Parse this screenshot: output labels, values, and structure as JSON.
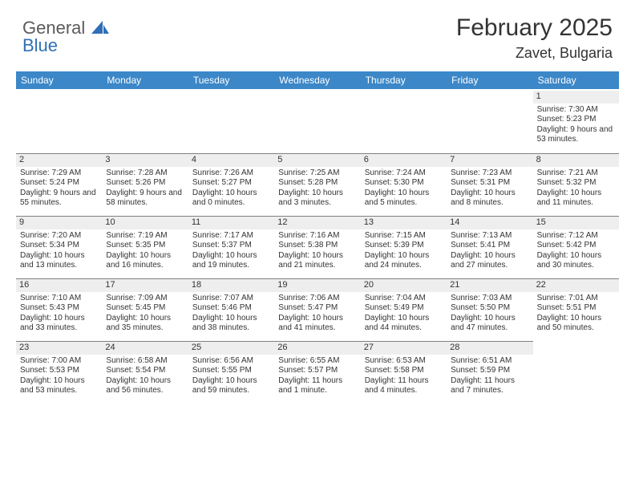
{
  "logo": {
    "word1": "General",
    "word2": "Blue"
  },
  "title": "February 2025",
  "location": "Zavet, Bulgaria",
  "colors": {
    "header_bg": "#3b87c8",
    "header_text": "#ffffff",
    "date_row_bg": "#eeeeee",
    "date_row_border": "#808080",
    "body_text": "#333333",
    "logo_gray": "#5b5b5b",
    "logo_blue": "#2f6fb5"
  },
  "daynames": [
    "Sunday",
    "Monday",
    "Tuesday",
    "Wednesday",
    "Thursday",
    "Friday",
    "Saturday"
  ],
  "weeks": [
    [
      {
        "n": null
      },
      {
        "n": null
      },
      {
        "n": null
      },
      {
        "n": null
      },
      {
        "n": null
      },
      {
        "n": null
      },
      {
        "n": 1,
        "sunrise": "7:30 AM",
        "sunset": "5:23 PM",
        "daylight": "9 hours and 53 minutes."
      }
    ],
    [
      {
        "n": 2,
        "sunrise": "7:29 AM",
        "sunset": "5:24 PM",
        "daylight": "9 hours and 55 minutes."
      },
      {
        "n": 3,
        "sunrise": "7:28 AM",
        "sunset": "5:26 PM",
        "daylight": "9 hours and 58 minutes."
      },
      {
        "n": 4,
        "sunrise": "7:26 AM",
        "sunset": "5:27 PM",
        "daylight": "10 hours and 0 minutes."
      },
      {
        "n": 5,
        "sunrise": "7:25 AM",
        "sunset": "5:28 PM",
        "daylight": "10 hours and 3 minutes."
      },
      {
        "n": 6,
        "sunrise": "7:24 AM",
        "sunset": "5:30 PM",
        "daylight": "10 hours and 5 minutes."
      },
      {
        "n": 7,
        "sunrise": "7:23 AM",
        "sunset": "5:31 PM",
        "daylight": "10 hours and 8 minutes."
      },
      {
        "n": 8,
        "sunrise": "7:21 AM",
        "sunset": "5:32 PM",
        "daylight": "10 hours and 11 minutes."
      }
    ],
    [
      {
        "n": 9,
        "sunrise": "7:20 AM",
        "sunset": "5:34 PM",
        "daylight": "10 hours and 13 minutes."
      },
      {
        "n": 10,
        "sunrise": "7:19 AM",
        "sunset": "5:35 PM",
        "daylight": "10 hours and 16 minutes."
      },
      {
        "n": 11,
        "sunrise": "7:17 AM",
        "sunset": "5:37 PM",
        "daylight": "10 hours and 19 minutes."
      },
      {
        "n": 12,
        "sunrise": "7:16 AM",
        "sunset": "5:38 PM",
        "daylight": "10 hours and 21 minutes."
      },
      {
        "n": 13,
        "sunrise": "7:15 AM",
        "sunset": "5:39 PM",
        "daylight": "10 hours and 24 minutes."
      },
      {
        "n": 14,
        "sunrise": "7:13 AM",
        "sunset": "5:41 PM",
        "daylight": "10 hours and 27 minutes."
      },
      {
        "n": 15,
        "sunrise": "7:12 AM",
        "sunset": "5:42 PM",
        "daylight": "10 hours and 30 minutes."
      }
    ],
    [
      {
        "n": 16,
        "sunrise": "7:10 AM",
        "sunset": "5:43 PM",
        "daylight": "10 hours and 33 minutes."
      },
      {
        "n": 17,
        "sunrise": "7:09 AM",
        "sunset": "5:45 PM",
        "daylight": "10 hours and 35 minutes."
      },
      {
        "n": 18,
        "sunrise": "7:07 AM",
        "sunset": "5:46 PM",
        "daylight": "10 hours and 38 minutes."
      },
      {
        "n": 19,
        "sunrise": "7:06 AM",
        "sunset": "5:47 PM",
        "daylight": "10 hours and 41 minutes."
      },
      {
        "n": 20,
        "sunrise": "7:04 AM",
        "sunset": "5:49 PM",
        "daylight": "10 hours and 44 minutes."
      },
      {
        "n": 21,
        "sunrise": "7:03 AM",
        "sunset": "5:50 PM",
        "daylight": "10 hours and 47 minutes."
      },
      {
        "n": 22,
        "sunrise": "7:01 AM",
        "sunset": "5:51 PM",
        "daylight": "10 hours and 50 minutes."
      }
    ],
    [
      {
        "n": 23,
        "sunrise": "7:00 AM",
        "sunset": "5:53 PM",
        "daylight": "10 hours and 53 minutes."
      },
      {
        "n": 24,
        "sunrise": "6:58 AM",
        "sunset": "5:54 PM",
        "daylight": "10 hours and 56 minutes."
      },
      {
        "n": 25,
        "sunrise": "6:56 AM",
        "sunset": "5:55 PM",
        "daylight": "10 hours and 59 minutes."
      },
      {
        "n": 26,
        "sunrise": "6:55 AM",
        "sunset": "5:57 PM",
        "daylight": "11 hours and 1 minute."
      },
      {
        "n": 27,
        "sunrise": "6:53 AM",
        "sunset": "5:58 PM",
        "daylight": "11 hours and 4 minutes."
      },
      {
        "n": 28,
        "sunrise": "6:51 AM",
        "sunset": "5:59 PM",
        "daylight": "11 hours and 7 minutes."
      },
      {
        "n": null
      }
    ]
  ],
  "labels": {
    "sunrise": "Sunrise:",
    "sunset": "Sunset:",
    "daylight": "Daylight:"
  }
}
